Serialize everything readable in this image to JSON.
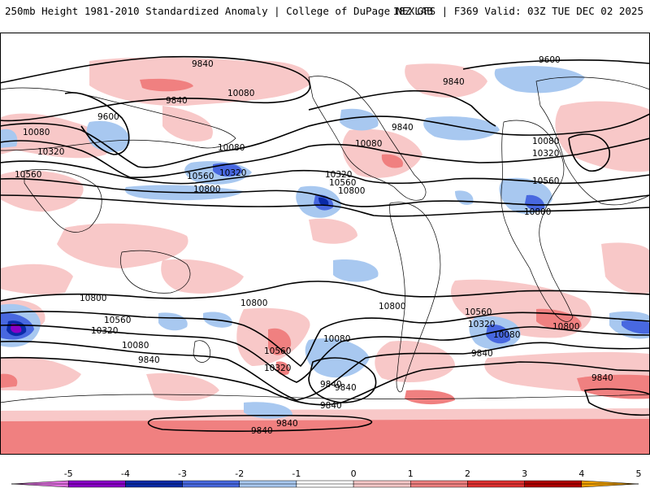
{
  "header": {
    "left_title": "250mb Height 1981-2010 Standardized Anomaly | College of DuPage NEXLAB",
    "right_title": "18Z GFS | F369 Valid: 03Z TUE DEC 02 2025"
  },
  "colorbar": {
    "ticks": [
      "-5",
      "-4",
      "-3",
      "-2",
      "-1",
      "0",
      "1",
      "2",
      "3",
      "4",
      "5"
    ],
    "colors": [
      "#e070e0",
      "#8a00c8",
      "#0a2aa8",
      "#4868e0",
      "#a8c8f0",
      "#ffffff",
      "#f8c8c8",
      "#f08080",
      "#e03030",
      "#b00000",
      "#f0a000"
    ]
  },
  "contour_labels": {
    "l1": "9840",
    "l2": "9600",
    "l3": "10080",
    "l4": "9840",
    "l5": "9600",
    "l6": "10080",
    "l7": "10320",
    "l8": "10560",
    "l9": "10080",
    "l10": "10560",
    "l11": "10320",
    "l12": "10800",
    "l13": "10320",
    "l14": "10560",
    "l15": "10800",
    "l16": "10080",
    "l17": "9840",
    "l18": "9840",
    "l19": "10080",
    "l20": "10320",
    "l21": "10560",
    "l22": "10800",
    "l23": "10800",
    "l24": "10560",
    "l25": "10320",
    "l26": "10080",
    "l27": "9840",
    "l28": "10800",
    "l29": "10560",
    "l30": "10320",
    "l31": "10080",
    "l32": "9840",
    "l33": "10800",
    "l34": "10560",
    "l35": "10320",
    "l36": "10080",
    "l37": "9840",
    "l38": "10800",
    "l39": "10560",
    "l40": "10320",
    "l41": "10080",
    "l42": "9840",
    "l43": "10800",
    "l44": "9840",
    "l45": "9840",
    "l46": "9840",
    "l47": "9840"
  }
}
